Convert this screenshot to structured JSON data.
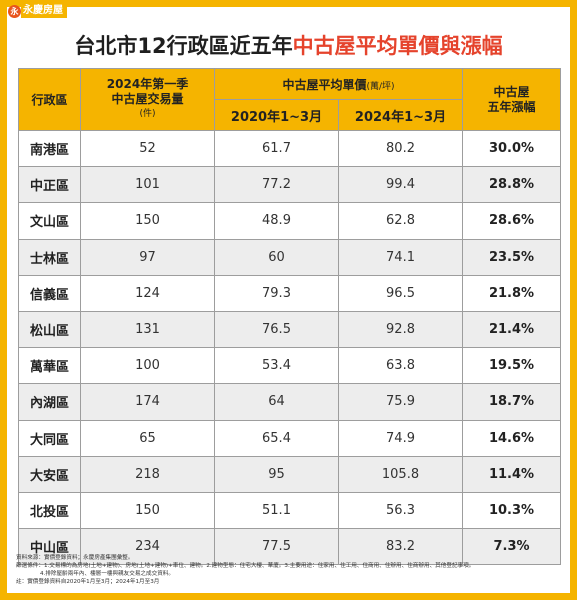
{
  "brand": {
    "logo_mark": "永",
    "logo_text": "永慶房屋"
  },
  "title": {
    "part1": "台北市12行政區近五年",
    "part2": "中古屋平均單價與漲幅"
  },
  "headers": {
    "district": "行政區",
    "volume_line1": "2024年第一季",
    "volume_line2": "中古屋交易量",
    "volume_unit": "(件)",
    "price_group": "中古屋平均單價",
    "price_unit": "(萬/坪)",
    "price_2020": "2020年1~3月",
    "price_2024": "2024年1~3月",
    "growth_line1": "中古屋",
    "growth_line2": "五年漲幅"
  },
  "rows": [
    {
      "district": "南港區",
      "volume": "52",
      "price2020": "61.7",
      "price2024": "80.2",
      "growth": "30.0%"
    },
    {
      "district": "中正區",
      "volume": "101",
      "price2020": "77.2",
      "price2024": "99.4",
      "growth": "28.8%"
    },
    {
      "district": "文山區",
      "volume": "150",
      "price2020": "48.9",
      "price2024": "62.8",
      "growth": "28.6%"
    },
    {
      "district": "士林區",
      "volume": "97",
      "price2020": "60",
      "price2024": "74.1",
      "growth": "23.5%"
    },
    {
      "district": "信義區",
      "volume": "124",
      "price2020": "79.3",
      "price2024": "96.5",
      "growth": "21.8%"
    },
    {
      "district": "松山區",
      "volume": "131",
      "price2020": "76.5",
      "price2024": "92.8",
      "growth": "21.4%"
    },
    {
      "district": "萬華區",
      "volume": "100",
      "price2020": "53.4",
      "price2024": "63.8",
      "growth": "19.5%"
    },
    {
      "district": "內湖區",
      "volume": "174",
      "price2020": "64",
      "price2024": "75.9",
      "growth": "18.7%"
    },
    {
      "district": "大同區",
      "volume": "65",
      "price2020": "65.4",
      "price2024": "74.9",
      "growth": "14.6%"
    },
    {
      "district": "大安區",
      "volume": "218",
      "price2020": "95",
      "price2024": "105.8",
      "growth": "11.4%"
    },
    {
      "district": "北投區",
      "volume": "150",
      "price2020": "51.1",
      "price2024": "56.3",
      "growth": "10.3%"
    },
    {
      "district": "中山區",
      "volume": "234",
      "price2020": "77.5",
      "price2024": "83.2",
      "growth": "7.3%"
    }
  ],
  "notes": [
    "資料來源：實價登錄資料；永慶房產集團彙整。",
    "篩選條件：1.交易標的為房地(土地+建物)、房地(土地+建物)+車位、建物。2.建物型態：住宅大樓、華廈。3.主要用途：住家用、住工用、住商用、住辦用、住商辦用、其他登記事項。",
    "4.排除屋齡兩年內、樓層一樓與親友交易之成交資料。",
    "註：實價登錄資料自2020年1月至3月；2024年1月至3月"
  ]
}
